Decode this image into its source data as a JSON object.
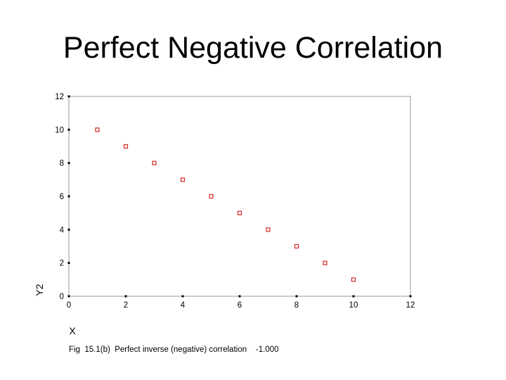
{
  "slide": {
    "title": "Perfect Negative Correlation",
    "caption": "Fig  15.1(b)  Perfect inverse (negative) correlation    -1.000"
  },
  "chart_data": {
    "type": "scatter",
    "title": "",
    "xlabel": "X",
    "ylabel": "Y2",
    "xlim": [
      0,
      12
    ],
    "ylim": [
      0,
      12
    ],
    "xticks": [
      0,
      2,
      4,
      6,
      8,
      10,
      12
    ],
    "yticks": [
      0,
      2,
      4,
      6,
      8,
      10,
      12
    ],
    "grid": false,
    "marker_color": "#d62728",
    "series": [
      {
        "x": [
          1,
          2,
          3,
          4,
          5,
          6,
          7,
          8,
          9,
          10
        ],
        "y": [
          10,
          9,
          8,
          7,
          6,
          5,
          4,
          3,
          2,
          1
        ]
      }
    ]
  }
}
